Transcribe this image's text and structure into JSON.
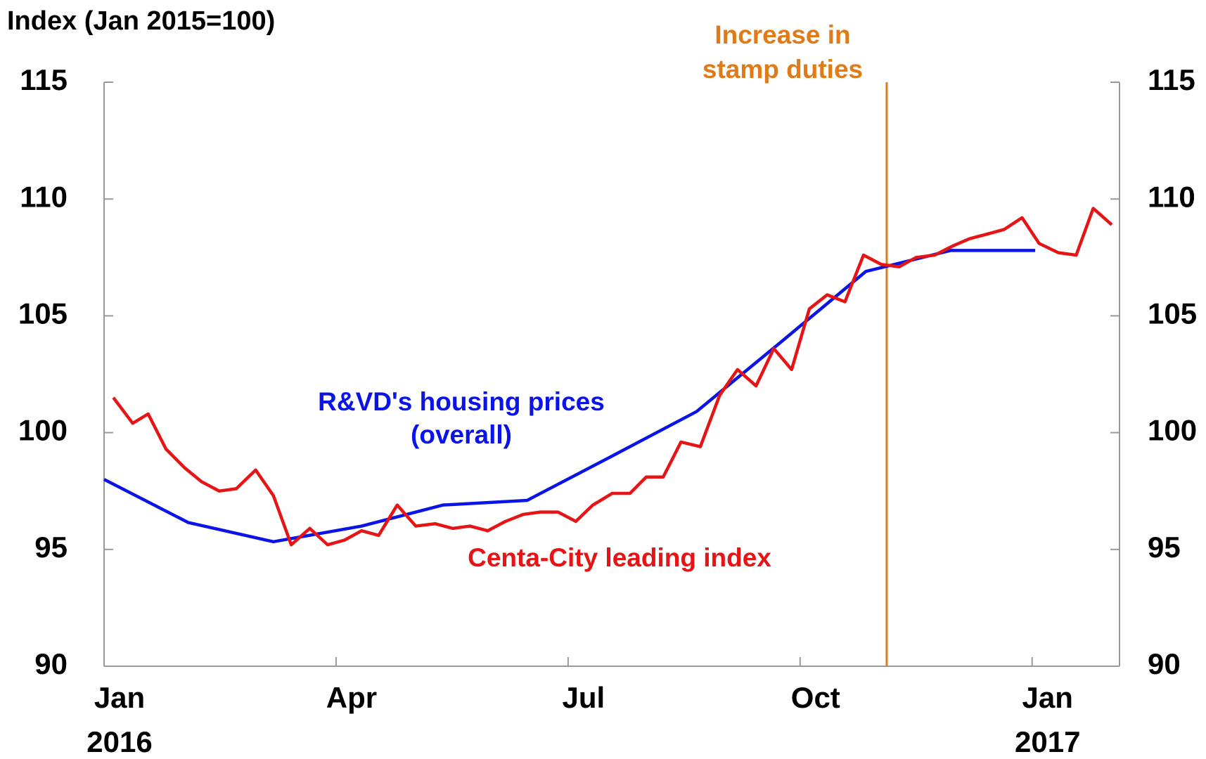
{
  "chart_data": {
    "type": "line",
    "y_axis_title": "Index (Jan 2015=100)",
    "xlim": [
      0,
      13.13
    ],
    "xticks": [
      {
        "value": 0,
        "label": "Jan\n2016"
      },
      {
        "value": 3,
        "label": "Apr"
      },
      {
        "value": 6,
        "label": "Jul"
      },
      {
        "value": 9,
        "label": "Oct"
      },
      {
        "value": 12,
        "label": "Jan\n2017"
      }
    ],
    "ylim": [
      90,
      115
    ],
    "yticks": [
      90,
      95,
      100,
      105,
      110,
      115
    ],
    "event": {
      "x": 10.12,
      "label": "Increase in\nstamp duties",
      "color": "#e07b1a"
    },
    "series": [
      {
        "name": "R&VD's housing prices\n(overall)",
        "color": "#0a14e6",
        "x": [
          0,
          1.09,
          2.19,
          3.33,
          4.38,
          5.47,
          6.57,
          7.66,
          8.76,
          9.85,
          10.95,
          12.04
        ],
        "values": [
          98.0,
          96.15,
          95.33,
          96.0,
          96.9,
          97.1,
          99.0,
          100.9,
          103.9,
          106.9,
          107.8,
          107.8
        ]
      },
      {
        "name": "Centa-City leading index",
        "color": "#e61414",
        "x": [
          0.12,
          0.37,
          0.57,
          0.8,
          1.04,
          1.26,
          1.49,
          1.71,
          1.96,
          2.19,
          2.42,
          2.66,
          2.89,
          3.11,
          3.33,
          3.55,
          3.79,
          4.03,
          4.28,
          4.51,
          4.73,
          4.96,
          5.19,
          5.42,
          5.64,
          5.87,
          6.1,
          6.32,
          6.57,
          6.8,
          7.01,
          7.23,
          7.46,
          7.71,
          7.96,
          8.19,
          8.43,
          8.66,
          8.89,
          9.12,
          9.35,
          9.58,
          9.82,
          10.05,
          10.28,
          10.5,
          10.74,
          10.98,
          11.19,
          11.42,
          11.64,
          11.87,
          12.09,
          12.34,
          12.57,
          12.79,
          13.03
        ],
        "values": [
          101.5,
          100.4,
          100.8,
          99.3,
          98.5,
          97.9,
          97.5,
          97.6,
          98.4,
          97.3,
          95.2,
          95.9,
          95.2,
          95.4,
          95.8,
          95.6,
          96.9,
          96.0,
          96.1,
          95.9,
          96.0,
          95.8,
          96.2,
          96.5,
          96.6,
          96.6,
          96.2,
          96.9,
          97.4,
          97.4,
          98.1,
          98.1,
          99.6,
          99.4,
          101.6,
          102.7,
          102.0,
          103.6,
          102.7,
          105.3,
          105.9,
          105.6,
          107.6,
          107.2,
          107.1,
          107.5,
          107.6,
          108.0,
          108.3,
          108.5,
          108.7,
          109.2,
          108.1,
          107.7,
          107.6,
          109.6,
          108.9
        ]
      }
    ]
  }
}
